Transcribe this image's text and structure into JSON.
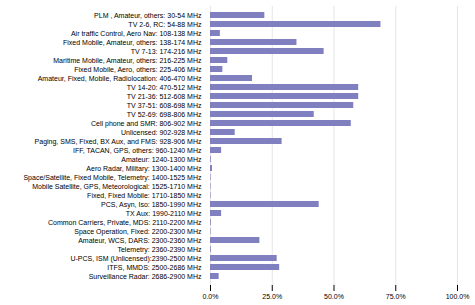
{
  "chart_data": {
    "type": "bar",
    "orientation": "horizontal",
    "categories": [
      "PLM , Amateur, others: 30-54 MHz",
      "TV 2-6, RC: 54-88 MHz",
      "Air traffic Control, Aero Nav: 108-138 MHz",
      "Fixed Mobile, Amateur, others: 138-174 MHz",
      "TV 7-13: 174-216 MHz",
      "Maritime Mobile, Amateur, others: 216-225 MHz",
      "Fixed Mobile, Aero, others: 225-406 MHz",
      "Amateur, Fixed, Mobile, Radiolocation: 406-470 MHz",
      "TV 14-20: 470-512 MHz",
      "TV 21-36: 512-608 MHz",
      "TV 37-51: 608-698 MHz",
      "TV 52-69: 698-806 MHz",
      "Cell phone and SMR: 806-902 MHz",
      "Unlicensed: 902-928 MHz",
      "Paging, SMS, Fixed, BX Aux, and FMS: 928-906 MHz",
      "IFF, TACAN, GPS, others: 960-1240 MHz",
      "Amateur: 1240-1300 MHz",
      "Aero Radar, Military: 1300-1400 MHz",
      "Space/Satellite, Fixed Mobile, Telemetry: 1400-1525 MHz",
      "Mobile Satellite, GPS, Meteorological: 1525-1710 MHz",
      "Fixed, Fixed Mobile: 1710-1850 MHz",
      "PCS, Asyn, Iso: 1850-1990 MHz",
      "TX Aux: 1990-2110 MHz",
      "Common Carriers, Private, MDS: 2110-2200 MHz",
      "Space Operation, Fixed: 2200-2300 MHz",
      "Amateur, WCS, DARS: 2300-2360 MHz",
      "Telemetry: 2360-2390 MHz",
      "U-PCS, ISM (Unlicensed):2390-2500 MHz",
      "ITFS, MMDS: 2500-2686 MHz",
      "Surveillance Radar: 2686-2900 MHz"
    ],
    "values": [
      22.0,
      69.0,
      4.0,
      35.0,
      46.0,
      7.0,
      5.0,
      17.0,
      60.0,
      60.0,
      58.0,
      42.0,
      57.0,
      10.0,
      29.0,
      4.5,
      0.3,
      0.8,
      0.2,
      0.2,
      0.2,
      44.0,
      4.5,
      0.3,
      0.2,
      20.0,
      0.3,
      27.0,
      28.0,
      3.5
    ],
    "color": "#8080c0",
    "xlim": [
      0,
      100
    ],
    "xticks": [
      {
        "value": 0,
        "label": "0.0%"
      },
      {
        "value": 25,
        "label": "25.0%"
      },
      {
        "value": 50,
        "label": "50.0%"
      },
      {
        "value": 75,
        "label": "75.0%"
      },
      {
        "value": 100,
        "label": "100.0%"
      }
    ],
    "grid": true
  }
}
